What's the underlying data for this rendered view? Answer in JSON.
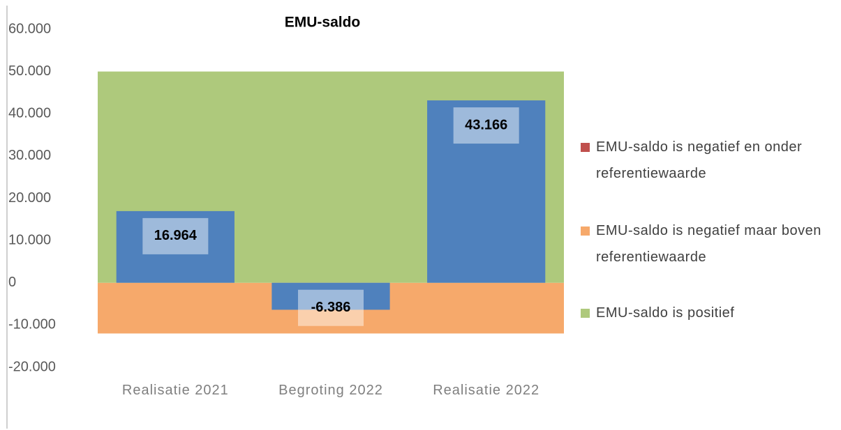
{
  "chart_data": {
    "type": "bar",
    "title": "EMU-saldo",
    "categories": [
      "Realisatie 2021",
      "Begroting 2022",
      "Realisatie 2022"
    ],
    "values": [
      16964,
      -6386,
      43166
    ],
    "value_labels": [
      "16.964",
      "-6.386",
      "43.166"
    ],
    "color": "#4f81bd",
    "bands": [
      {
        "name": "EMU-saldo is negatief en onder referentiewaarde",
        "color": "#c0504d",
        "value": 0
      },
      {
        "name": "EMU-saldo is negatief maar boven referentiewaarde",
        "color": "#f6a96b",
        "value": -12000
      },
      {
        "name": "EMU-saldo is positief",
        "color": "#aec97c",
        "value": 50000
      }
    ],
    "ylim": [
      -20000,
      60000
    ],
    "yticks": [
      {
        "value": -20000,
        "label": "-20.000"
      },
      {
        "value": -10000,
        "label": "-10.000"
      },
      0,
      {
        "value": 10000,
        "label": "10.000"
      },
      {
        "value": 20000,
        "label": "20.000"
      },
      {
        "value": 30000,
        "label": "30.000"
      },
      {
        "value": 40000,
        "label": "40.000"
      },
      {
        "value": 50000,
        "label": "50.000"
      },
      {
        "value": 60000,
        "label": "60.000"
      }
    ],
    "grid": false,
    "legend": "right"
  }
}
